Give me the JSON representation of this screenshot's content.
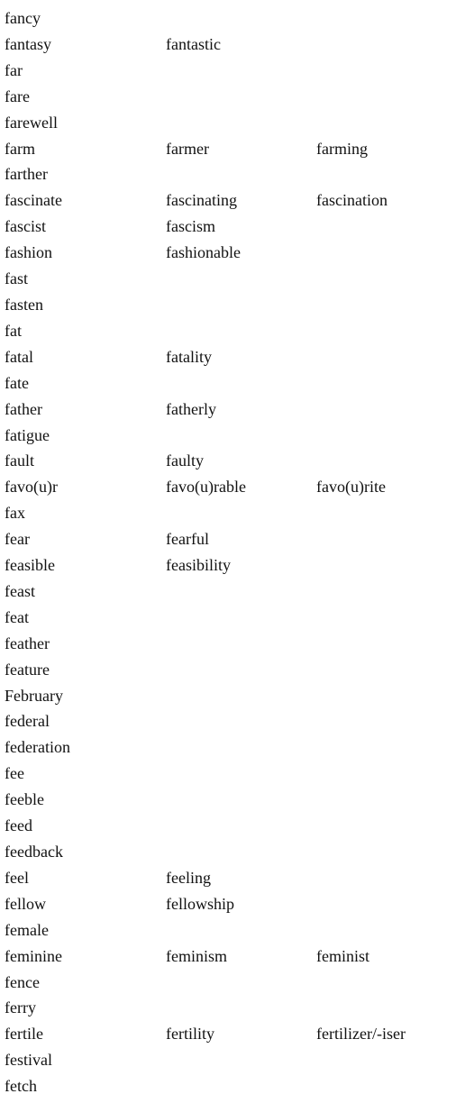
{
  "rows": [
    [
      "fancy",
      "",
      ""
    ],
    [
      "fantasy",
      "fantastic",
      ""
    ],
    [
      "far",
      "",
      ""
    ],
    [
      "fare",
      "",
      ""
    ],
    [
      "farewell",
      "",
      ""
    ],
    [
      "farm",
      "farmer",
      "farming"
    ],
    [
      "farther",
      "",
      ""
    ],
    [
      "fascinate",
      "fascinating",
      "fascination"
    ],
    [
      "fascist",
      "fascism",
      ""
    ],
    [
      "fashion",
      "fashionable",
      ""
    ],
    [
      "fast",
      "",
      ""
    ],
    [
      "fasten",
      "",
      ""
    ],
    [
      "fat",
      "",
      ""
    ],
    [
      "fatal",
      "fatality",
      ""
    ],
    [
      "fate",
      "",
      ""
    ],
    [
      "father",
      "fatherly",
      ""
    ],
    [
      "fatigue",
      "",
      ""
    ],
    [
      "fault",
      "faulty",
      ""
    ],
    [
      "favo(u)r",
      "favo(u)rable",
      "favo(u)rite"
    ],
    [
      "fax",
      "",
      ""
    ],
    [
      "fear",
      "fearful",
      ""
    ],
    [
      "feasible",
      "feasibility",
      ""
    ],
    [
      "feast",
      "",
      ""
    ],
    [
      "feat",
      "",
      ""
    ],
    [
      "feather",
      "",
      ""
    ],
    [
      "feature",
      "",
      ""
    ],
    [
      "February",
      "",
      ""
    ],
    [
      "federal",
      "",
      ""
    ],
    [
      "federation",
      "",
      ""
    ],
    [
      "fee",
      "",
      ""
    ],
    [
      "feeble",
      "",
      ""
    ],
    [
      "feed",
      "",
      ""
    ],
    [
      "feedback",
      "",
      ""
    ],
    [
      "feel",
      "feeling",
      ""
    ],
    [
      "fellow",
      "fellowship",
      ""
    ],
    [
      "female",
      "",
      ""
    ],
    [
      "feminine",
      "feminism",
      "feminist"
    ],
    [
      "fence",
      "",
      ""
    ],
    [
      "ferry",
      "",
      ""
    ],
    [
      "fertile",
      "fertility",
      "fertilizer/-iser"
    ],
    [
      "festival",
      "",
      ""
    ],
    [
      "fetch",
      "",
      ""
    ]
  ]
}
